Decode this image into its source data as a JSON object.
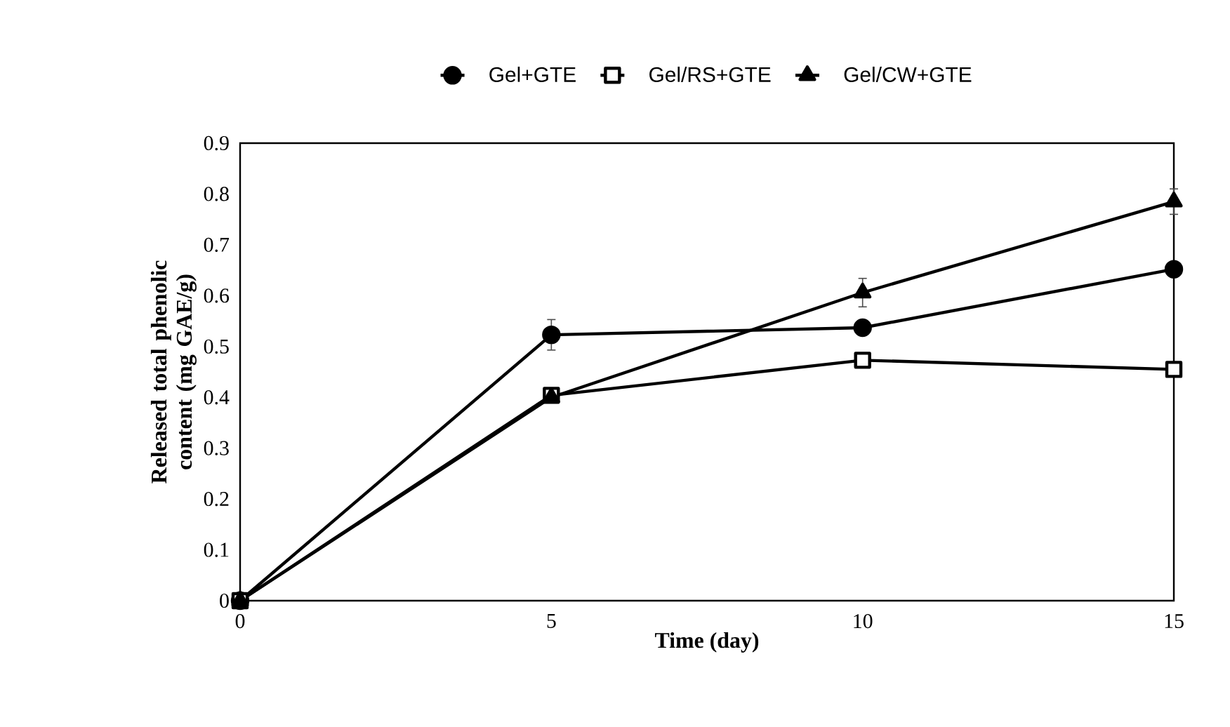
{
  "chart_data": {
    "type": "line",
    "xlabel": "Time (day)",
    "ylabel": "Released total phenolic content (mg GAE/g)",
    "x": [
      0,
      5,
      10,
      15
    ],
    "series": [
      {
        "name": "Gel+GTE",
        "color": "#000000",
        "marker": "circle",
        "values": [
          0,
          0.523,
          0.537,
          0.652
        ],
        "errors": [
          null,
          0.03,
          null,
          null
        ]
      },
      {
        "name": "Gel/RS+GTE",
        "color": "#000000",
        "marker": "square",
        "values": [
          0,
          0.404,
          0.473,
          0.455
        ],
        "errors": [
          null,
          null,
          0.01,
          0.01
        ]
      },
      {
        "name": "Gel/CW+GTE",
        "color": "#000000",
        "marker": "triangle",
        "values": [
          0,
          0.4,
          0.606,
          0.785
        ],
        "errors": [
          null,
          null,
          0.028,
          0.025
        ]
      }
    ],
    "xlim": [
      0,
      15
    ],
    "ylim": [
      0,
      0.9
    ],
    "xticks": [
      0,
      5,
      10,
      15
    ],
    "yticks": [
      0,
      0.1,
      0.2,
      0.3,
      0.4,
      0.5,
      0.6,
      0.7,
      0.8,
      0.9
    ],
    "grid": false,
    "legend": "top",
    "line_style": "solid"
  }
}
